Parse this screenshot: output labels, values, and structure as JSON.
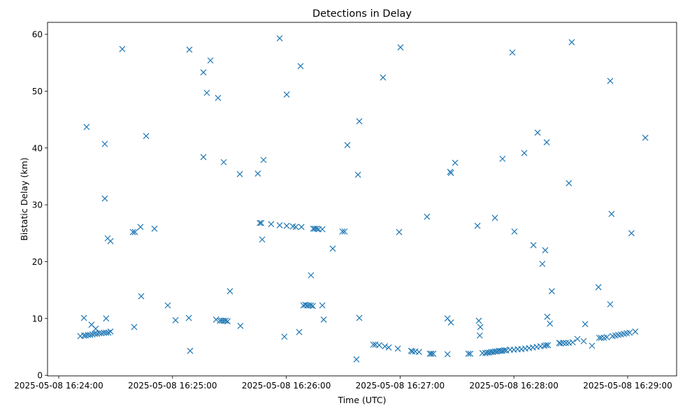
{
  "chart_data": {
    "type": "scatter",
    "title": "Detections in Delay",
    "xlabel": "Time (UTC)",
    "ylabel": "Bistatic Delay (km)",
    "x_unit": "seconds after 2025-05-08 16:24:00",
    "xlim": [
      -5.9,
      325.8
    ],
    "ylim": [
      -0.1,
      62.1
    ],
    "x_ticks": [
      {
        "value": 0,
        "label": "2025-05-08 16:24:00"
      },
      {
        "value": 60,
        "label": "2025-05-08 16:25:00"
      },
      {
        "value": 120,
        "label": "2025-05-08 16:26:00"
      },
      {
        "value": 180,
        "label": "2025-05-08 16:27:00"
      },
      {
        "value": 240,
        "label": "2025-05-08 16:28:00"
      },
      {
        "value": 300,
        "label": "2025-05-08 16:29:00"
      }
    ],
    "y_ticks": [
      {
        "value": 0,
        "label": "0"
      },
      {
        "value": 10,
        "label": "10"
      },
      {
        "value": 20,
        "label": "20"
      },
      {
        "value": 30,
        "label": "30"
      },
      {
        "value": 40,
        "label": "40"
      },
      {
        "value": 50,
        "label": "50"
      },
      {
        "value": 60,
        "label": "60"
      }
    ],
    "grid": false,
    "marker": "x",
    "color": "#1f77b4",
    "points": [
      [
        11.4,
        6.9
      ],
      [
        13.3,
        7.0
      ],
      [
        13.3,
        10.1
      ],
      [
        14.2,
        7.0
      ],
      [
        15.4,
        7.1
      ],
      [
        16.6,
        7.1
      ],
      [
        17.3,
        8.9
      ],
      [
        17.8,
        7.2
      ],
      [
        19.0,
        7.3
      ],
      [
        19.5,
        8.2
      ],
      [
        20.2,
        7.3
      ],
      [
        21.4,
        7.4
      ],
      [
        22.6,
        7.4
      ],
      [
        23.8,
        7.5
      ],
      [
        25.0,
        10.0
      ],
      [
        25.0,
        7.5
      ],
      [
        26.2,
        7.5
      ],
      [
        27.3,
        7.7
      ],
      [
        14.7,
        43.7
      ],
      [
        24.3,
        40.7
      ],
      [
        24.3,
        31.1
      ],
      [
        25.8,
        24.1
      ],
      [
        27.3,
        23.6
      ],
      [
        33.5,
        57.4
      ],
      [
        39.8,
        8.5
      ],
      [
        39.1,
        25.2
      ],
      [
        40.2,
        25.2
      ],
      [
        43.1,
        26.1
      ],
      [
        43.5,
        13.9
      ],
      [
        46.1,
        42.1
      ],
      [
        50.5,
        25.8
      ],
      [
        57.5,
        12.3
      ],
      [
        61.6,
        9.7
      ],
      [
        68.6,
        10.1
      ],
      [
        69.3,
        4.3
      ],
      [
        68.9,
        57.3
      ],
      [
        76.3,
        53.3
      ],
      [
        76.3,
        38.4
      ],
      [
        78.1,
        49.7
      ],
      [
        80.0,
        55.4
      ],
      [
        84.0,
        48.8
      ],
      [
        87.0,
        37.5
      ],
      [
        83.0,
        9.8
      ],
      [
        85.0,
        9.6
      ],
      [
        86.0,
        9.6
      ],
      [
        87.0,
        9.6
      ],
      [
        88.0,
        9.6
      ],
      [
        89.0,
        9.5
      ],
      [
        90.3,
        14.8
      ],
      [
        95.8,
        8.7
      ],
      [
        95.5,
        35.4
      ],
      [
        105.0,
        35.5
      ],
      [
        106.0,
        26.8
      ],
      [
        106.8,
        26.8
      ],
      [
        107.3,
        23.9
      ],
      [
        108.0,
        37.9
      ],
      [
        112.0,
        26.6
      ],
      [
        116.5,
        59.3
      ],
      [
        116.5,
        26.4
      ],
      [
        119.0,
        6.8
      ],
      [
        120.2,
        49.4
      ],
      [
        120.2,
        26.3
      ],
      [
        123.5,
        26.2
      ],
      [
        125.0,
        26.1
      ],
      [
        126.8,
        7.6
      ],
      [
        127.5,
        54.4
      ],
      [
        128.0,
        26.1
      ],
      [
        129.0,
        12.3
      ],
      [
        130.0,
        12.4
      ],
      [
        131.0,
        12.3
      ],
      [
        132.0,
        12.3
      ],
      [
        133.0,
        12.3
      ],
      [
        134.0,
        12.2
      ],
      [
        133.0,
        17.6
      ],
      [
        134.2,
        25.8
      ],
      [
        135.0,
        25.8
      ],
      [
        136.0,
        25.8
      ],
      [
        137.0,
        25.7
      ],
      [
        139.0,
        25.7
      ],
      [
        139.0,
        12.3
      ],
      [
        139.7,
        9.8
      ],
      [
        144.5,
        22.3
      ],
      [
        149.6,
        25.3
      ],
      [
        150.7,
        25.3
      ],
      [
        152.2,
        40.5
      ],
      [
        157.0,
        2.8
      ],
      [
        157.8,
        35.3
      ],
      [
        158.5,
        44.7
      ],
      [
        158.5,
        10.1
      ],
      [
        165.9,
        5.4
      ],
      [
        167.0,
        5.4
      ],
      [
        169.0,
        5.3
      ],
      [
        171.0,
        52.4
      ],
      [
        172.0,
        5.1
      ],
      [
        174.0,
        4.9
      ],
      [
        178.8,
        4.7
      ],
      [
        179.5,
        25.2
      ],
      [
        180.2,
        57.7
      ],
      [
        185.8,
        4.3
      ],
      [
        186.5,
        4.2
      ],
      [
        188.0,
        4.2
      ],
      [
        190.0,
        4.1
      ],
      [
        194.2,
        27.9
      ],
      [
        195.7,
        3.8
      ],
      [
        196.5,
        3.8
      ],
      [
        197.5,
        3.8
      ],
      [
        205.0,
        10.0
      ],
      [
        206.8,
        9.3
      ],
      [
        205.0,
        3.7
      ],
      [
        206.4,
        35.8
      ],
      [
        206.8,
        35.6
      ],
      [
        209.0,
        37.4
      ],
      [
        216.0,
        3.8
      ],
      [
        217.0,
        3.8
      ],
      [
        220.8,
        26.3
      ],
      [
        221.5,
        9.6
      ],
      [
        222.3,
        8.5
      ],
      [
        222.0,
        7.0
      ],
      [
        223.4,
        3.9
      ],
      [
        225.0,
        3.9
      ],
      [
        226.0,
        4.0
      ],
      [
        227.0,
        4.0
      ],
      [
        228.0,
        4.1
      ],
      [
        229.0,
        4.1
      ],
      [
        230.0,
        4.2
      ],
      [
        231.0,
        4.2
      ],
      [
        232.0,
        4.3
      ],
      [
        233.0,
        4.3
      ],
      [
        234.0,
        4.3
      ],
      [
        235.0,
        4.4
      ],
      [
        236.0,
        4.4
      ],
      [
        238.0,
        4.5
      ],
      [
        240.0,
        4.5
      ],
      [
        242.0,
        4.6
      ],
      [
        244.0,
        4.6
      ],
      [
        246.0,
        4.7
      ],
      [
        230.0,
        27.7
      ],
      [
        234.0,
        38.1
      ],
      [
        239.2,
        56.8
      ],
      [
        240.3,
        25.3
      ],
      [
        245.5,
        39.1
      ],
      [
        248.0,
        4.8
      ],
      [
        250.0,
        4.9
      ],
      [
        252.0,
        5.0
      ],
      [
        254.0,
        5.1
      ],
      [
        256.0,
        5.2
      ],
      [
        257.0,
        5.3
      ],
      [
        258.0,
        5.3
      ],
      [
        250.3,
        22.9
      ],
      [
        252.5,
        42.7
      ],
      [
        255.0,
        19.6
      ],
      [
        256.5,
        22.0
      ],
      [
        257.3,
        41.0
      ],
      [
        257.6,
        10.3
      ],
      [
        259.0,
        9.1
      ],
      [
        260.0,
        14.8
      ],
      [
        263.9,
        5.7
      ],
      [
        264.6,
        5.6
      ],
      [
        266.0,
        5.7
      ],
      [
        267.5,
        5.7
      ],
      [
        269.0,
        5.7
      ],
      [
        271.0,
        5.8
      ],
      [
        269.0,
        33.8
      ],
      [
        270.5,
        58.6
      ],
      [
        273.5,
        6.4
      ],
      [
        276.8,
        6.0
      ],
      [
        277.6,
        9.0
      ],
      [
        281.2,
        5.2
      ],
      [
        284.6,
        15.5
      ],
      [
        285.0,
        6.6
      ],
      [
        286.0,
        6.6
      ],
      [
        287.5,
        6.6
      ],
      [
        289.0,
        6.7
      ],
      [
        290.8,
        51.8
      ],
      [
        290.8,
        12.5
      ],
      [
        291.5,
        28.4
      ],
      [
        292.0,
        6.9
      ],
      [
        293.5,
        7.0
      ],
      [
        295.0,
        7.1
      ],
      [
        296.5,
        7.2
      ],
      [
        298.0,
        7.3
      ],
      [
        299.5,
        7.4
      ],
      [
        301.0,
        7.5
      ],
      [
        302.0,
        25.0
      ],
      [
        304.0,
        7.7
      ],
      [
        309.3,
        41.8
      ]
    ]
  }
}
